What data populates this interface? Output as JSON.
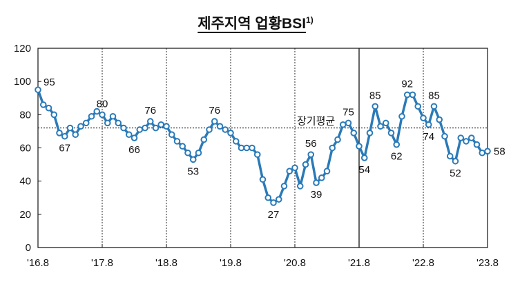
{
  "title": "제주지역 업황BSI",
  "title_note": "1)",
  "chart_data": {
    "type": "line",
    "x_tick_labels": [
      "'16.8",
      "'17.8",
      "'18.8",
      "'19.8",
      "'20.8",
      "'21.8",
      "'22.8",
      "'23.8"
    ],
    "y_tick_labels": [
      "0",
      "20",
      "40",
      "60",
      "80",
      "100",
      "120"
    ],
    "ylim": [
      0,
      120
    ],
    "grid": false,
    "reference_line": {
      "label": "장기평균",
      "value": 72
    },
    "line_color": "#2a7ab8",
    "marker_fill": "#ffffff",
    "months": [
      "'16.8",
      "'16.9",
      "'16.10",
      "'16.11",
      "'16.12",
      "'17.1",
      "'17.2",
      "'17.3",
      "'17.4",
      "'17.5",
      "'17.6",
      "'17.7",
      "'17.8",
      "'17.9",
      "'17.10",
      "'17.11",
      "'17.12",
      "'18.1",
      "'18.2",
      "'18.3",
      "'18.4",
      "'18.5",
      "'18.6",
      "'18.7",
      "'18.8",
      "'18.9",
      "'18.10",
      "'18.11",
      "'18.12",
      "'19.1",
      "'19.2",
      "'19.3",
      "'19.4",
      "'19.5",
      "'19.6",
      "'19.7",
      "'19.8",
      "'19.9",
      "'19.10",
      "'19.11",
      "'19.12",
      "'20.1",
      "'20.2",
      "'20.3",
      "'20.4",
      "'20.5",
      "'20.6",
      "'20.7",
      "'20.8",
      "'20.9",
      "'20.10",
      "'20.11",
      "'20.12",
      "'21.1",
      "'21.2",
      "'21.3",
      "'21.4",
      "'21.5",
      "'21.6",
      "'21.7",
      "'21.8",
      "'21.9",
      "'21.10",
      "'21.11",
      "'21.12",
      "'22.1",
      "'22.2",
      "'22.3",
      "'22.4",
      "'22.5",
      "'22.6",
      "'22.7",
      "'22.8",
      "'22.9",
      "'22.10",
      "'22.11",
      "'22.12",
      "'23.1",
      "'23.2",
      "'23.3",
      "'23.4",
      "'23.5",
      "'23.6",
      "'23.7",
      "'23.8"
    ],
    "values": [
      95,
      86,
      84,
      80,
      69,
      67,
      72,
      68,
      73,
      75,
      79,
      82,
      80,
      75,
      79,
      75,
      72,
      68,
      66,
      71,
      72,
      76,
      72,
      74,
      73,
      68,
      64,
      61,
      57,
      53,
      57,
      65,
      71,
      76,
      73,
      71,
      69,
      64,
      60,
      60,
      60,
      56,
      41,
      30,
      27,
      29,
      37,
      46,
      48,
      37,
      50,
      56,
      39,
      42,
      46,
      60,
      65,
      74,
      75,
      69,
      61,
      54,
      69,
      85,
      73,
      75,
      69,
      62,
      79,
      92,
      92,
      85,
      78,
      74,
      85,
      77,
      67,
      55,
      52,
      66,
      64,
      66,
      62,
      57,
      58
    ],
    "data_labels": [
      {
        "index": 0,
        "text": "95"
      },
      {
        "index": 5,
        "text": "67"
      },
      {
        "index": 12,
        "text": "80"
      },
      {
        "index": 18,
        "text": "66"
      },
      {
        "index": 21,
        "text": "76"
      },
      {
        "index": 29,
        "text": "53"
      },
      {
        "index": 33,
        "text": "76"
      },
      {
        "index": 44,
        "text": "27"
      },
      {
        "index": 51,
        "text": "56"
      },
      {
        "index": 52,
        "text": "39"
      },
      {
        "index": 58,
        "text": "75"
      },
      {
        "index": 61,
        "text": "54"
      },
      {
        "index": 63,
        "text": "85"
      },
      {
        "index": 67,
        "text": "62"
      },
      {
        "index": 69,
        "text": "92"
      },
      {
        "index": 73,
        "text": "74"
      },
      {
        "index": 74,
        "text": "85"
      },
      {
        "index": 78,
        "text": "52"
      },
      {
        "index": 84,
        "text": "58"
      }
    ],
    "year_separators": [
      {
        "index": 12,
        "solid": false
      },
      {
        "index": 24,
        "solid": false
      },
      {
        "index": 36,
        "solid": false
      },
      {
        "index": 48,
        "solid": false
      },
      {
        "index": 60,
        "solid": true
      },
      {
        "index": 72,
        "solid": false
      }
    ]
  }
}
